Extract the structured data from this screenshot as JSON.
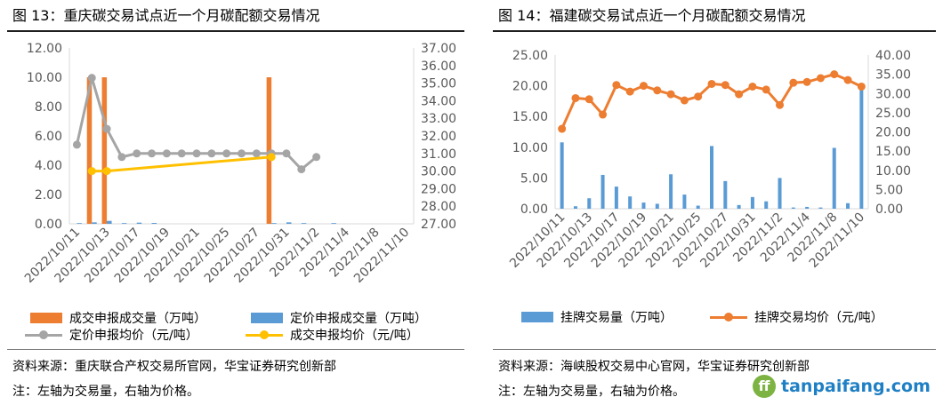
{
  "left": {
    "title": "图 13：重庆碳交易试点近一个月碳配额交易情况",
    "source": "资料来源：重庆联合产权交易所官网，华宝证券研究创新部",
    "remark": "注：左轴为交易量，右轴为价格。",
    "legend": [
      "成交申报成交量（万吨）",
      "定价申报成交量（万吨）",
      "定价申报均价（元/吨）",
      "成交申报均价（元/吨）"
    ]
  },
  "right": {
    "title": "图 14：福建碳交易试点近一个月碳配额交易情况",
    "source": "资料来源：海峡股权交易中心官网，华宝证券研究创新部",
    "remark": "注：左轴为交易量，右轴为价格。",
    "legend": [
      "挂牌交易量（万吨）",
      "挂牌交易均价（元/吨）"
    ],
    "logo_text": "tanpaifang.com"
  },
  "chart_data": [
    {
      "type": "bar",
      "categories": [
        "2022/10/11",
        "2022/10/12",
        "2022/10/13",
        "2022/10/14",
        "2022/10/17",
        "2022/10/18",
        "2022/10/19",
        "2022/10/20",
        "2022/10/21",
        "2022/10/24",
        "2022/10/25",
        "2022/10/26",
        "2022/10/27",
        "2022/10/28",
        "2022/10/31",
        "2022/11/1",
        "2022/11/2",
        "2022/11/3",
        "2022/11/4",
        "2022/11/7",
        "2022/11/8",
        "2022/11/9",
        "2022/11/10"
      ],
      "tick_labels": [
        "2022/10/11",
        "2022/10/13",
        "2022/10/17",
        "2022/10/19",
        "2022/10/21",
        "2022/10/25",
        "2022/10/27",
        "2022/10/31",
        "2022/11/2",
        "2022/11/4",
        "2022/11/8",
        "2022/11/10"
      ],
      "y_left": {
        "lim": [
          0,
          12
        ],
        "ticks": [
          "0.00",
          "2.00",
          "4.00",
          "6.00",
          "8.00",
          "10.00",
          "12.00"
        ]
      },
      "y_right": {
        "lim": [
          27,
          37
        ],
        "ticks": [
          "27.00",
          "28.00",
          "29.00",
          "30.00",
          "31.00",
          "32.00",
          "33.00",
          "34.00",
          "35.00",
          "36.00",
          "37.00"
        ]
      },
      "grid": false,
      "legend_position": "bottom",
      "series": [
        {
          "name": "成交申报成交量（万吨）",
          "kind": "bar",
          "axis": "left",
          "color": "#ed7d31",
          "values": [
            null,
            10,
            10,
            null,
            null,
            null,
            null,
            null,
            null,
            null,
            null,
            null,
            null,
            10,
            null,
            null,
            null,
            null,
            null,
            null,
            null,
            null,
            null
          ]
        },
        {
          "name": "定价申报成交量（万吨）",
          "kind": "bar",
          "axis": "left",
          "color": "#5b9bd5",
          "values": [
            0.05,
            0.1,
            0.2,
            0.05,
            0.08,
            0.06,
            null,
            null,
            null,
            null,
            null,
            null,
            null,
            0.05,
            0.1,
            0.05,
            null,
            0.05,
            null,
            null,
            null,
            null,
            null
          ]
        },
        {
          "name": "定价申报均价（元/吨）",
          "kind": "line",
          "axis": "right",
          "color": "#a5a5a5",
          "values": [
            31.5,
            35.3,
            32.4,
            30.8,
            31,
            31,
            31,
            31,
            31,
            31,
            31,
            31,
            31,
            31,
            31,
            30.1,
            30.8,
            null,
            null,
            null,
            null,
            null,
            null
          ]
        },
        {
          "name": "成交申报均价（元/吨）",
          "kind": "line",
          "axis": "right",
          "color": "#ffc000",
          "values": [
            null,
            30,
            30,
            null,
            null,
            null,
            null,
            null,
            null,
            null,
            null,
            null,
            null,
            30.8,
            null,
            null,
            null,
            null,
            null,
            null,
            null,
            null,
            null
          ]
        }
      ]
    },
    {
      "type": "bar",
      "categories": [
        "2022/10/11",
        "2022/10/12",
        "2022/10/13",
        "2022/10/14",
        "2022/10/17",
        "2022/10/18",
        "2022/10/19",
        "2022/10/20",
        "2022/10/21",
        "2022/10/24",
        "2022/10/25",
        "2022/10/26",
        "2022/10/27",
        "2022/10/28",
        "2022/10/31",
        "2022/11/1",
        "2022/11/2",
        "2022/11/3",
        "2022/11/4",
        "2022/11/7",
        "2022/11/8",
        "2022/11/9",
        "2022/11/10"
      ],
      "tick_labels": [
        "2022/10/11",
        "2022/10/13",
        "2022/10/17",
        "2022/10/19",
        "2022/10/21",
        "2022/10/25",
        "2022/10/27",
        "2022/10/31",
        "2022/11/2",
        "2022/11/4",
        "2022/11/8",
        "2022/11/10"
      ],
      "y_left": {
        "lim": [
          0,
          25
        ],
        "ticks": [
          "0.00",
          "5.00",
          "10.00",
          "15.00",
          "20.00",
          "25.00"
        ]
      },
      "y_right": {
        "lim": [
          0,
          40
        ],
        "ticks": [
          "0.00",
          "5.00",
          "10.00",
          "15.00",
          "20.00",
          "25.00",
          "30.00",
          "35.00",
          "40.00"
        ]
      },
      "grid": false,
      "legend_position": "bottom",
      "series": [
        {
          "name": "挂牌交易量（万吨）",
          "kind": "bar",
          "axis": "left",
          "color": "#5b9bd5",
          "values": [
            10.8,
            0.4,
            1.7,
            5.5,
            3.6,
            2.0,
            1.0,
            0.8,
            5.6,
            2.3,
            0.5,
            10.2,
            4.5,
            0.6,
            1.9,
            1.2,
            5.0,
            0.2,
            0.3,
            0.2,
            9.9,
            0.9,
            19.8
          ]
        },
        {
          "name": "挂牌交易均价（元/吨）",
          "kind": "line",
          "axis": "right",
          "color": "#ed7d31",
          "values": [
            20.8,
            28.8,
            28.5,
            24.5,
            32.2,
            30.5,
            32,
            30.8,
            29.8,
            28.2,
            29.2,
            32.5,
            32.2,
            29.8,
            31.8,
            31,
            27,
            32.8,
            33,
            34,
            35,
            33.5,
            31.8
          ]
        }
      ]
    }
  ]
}
